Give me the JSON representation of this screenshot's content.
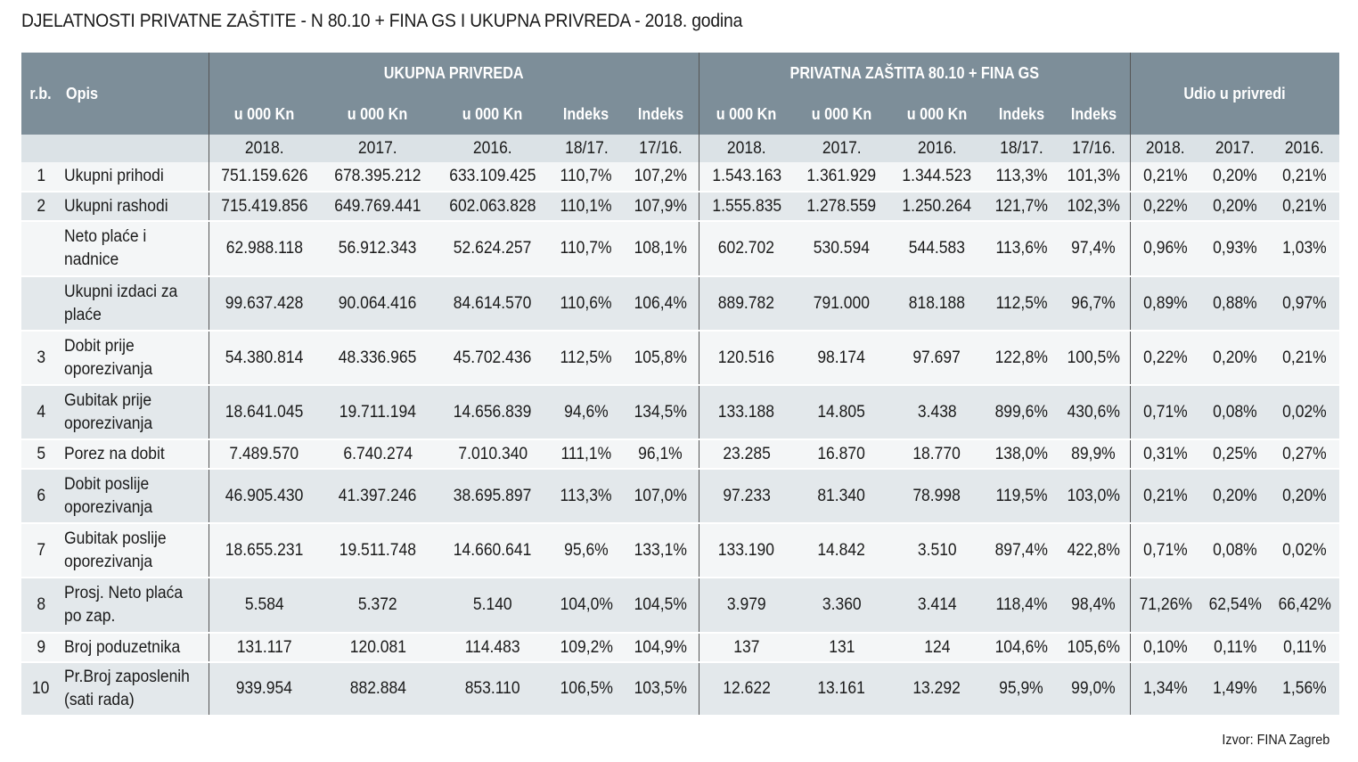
{
  "title": "DJELATNOSTI PRIVATNE ZAŠTITE - N 80.10 + FINA GS I UKUPNA PRIVREDA - 2018. godina",
  "source": "Izvor: FINA Zagreb",
  "header": {
    "rb": "r.b.",
    "opis": "Opis",
    "group1": "UKUPNA PRIVREDA",
    "group2": "PRIVATNA ZAŠTITA 80.10 + FINA GS",
    "group3": "Udio u privredi",
    "sub": [
      "u 000 Kn",
      "u 000 Kn",
      "u 000 Kn",
      "Indeks",
      "Indeks",
      "u 000 Kn",
      "u 000 Kn",
      "u 000 Kn",
      "Indeks",
      "Indeks"
    ],
    "years": [
      "2018.",
      "2017.",
      "2016.",
      "18/17.",
      "17/16.",
      "2018.",
      "2017.",
      "2016.",
      "18/17.",
      "17/16.",
      "2018.",
      "2017.",
      "2016."
    ]
  },
  "rows": [
    {
      "rb": "1",
      "opis": "Ukupni prihodi",
      "v": [
        "751.159.626",
        "678.395.212",
        "633.109.425",
        "110,7%",
        "107,2%",
        "1.543.163",
        "1.361.929",
        "1.344.523",
        "113,3%",
        "101,3%",
        "0,21%",
        "0,20%",
        "0,21%"
      ]
    },
    {
      "rb": "2",
      "opis": "Ukupni rashodi",
      "v": [
        "715.419.856",
        "649.769.441",
        "602.063.828",
        "110,1%",
        "107,9%",
        "1.555.835",
        "1.278.559",
        "1.250.264",
        "121,7%",
        "102,3%",
        "0,22%",
        "0,20%",
        "0,21%"
      ]
    },
    {
      "rb": "",
      "opis": "Neto plaće i nadnice",
      "v": [
        "62.988.118",
        "56.912.343",
        "52.624.257",
        "110,7%",
        "108,1%",
        "602.702",
        "530.594",
        "544.583",
        "113,6%",
        "97,4%",
        "0,96%",
        "0,93%",
        "1,03%"
      ]
    },
    {
      "rb": "",
      "opis": "Ukupni izdaci za plaće",
      "v": [
        "99.637.428",
        "90.064.416",
        "84.614.570",
        "110,6%",
        "106,4%",
        "889.782",
        "791.000",
        "818.188",
        "112,5%",
        "96,7%",
        "0,89%",
        "0,88%",
        "0,97%"
      ]
    },
    {
      "rb": "3",
      "opis": "Dobit prije oporezivanja",
      "v": [
        "54.380.814",
        "48.336.965",
        "45.702.436",
        "112,5%",
        "105,8%",
        "120.516",
        "98.174",
        "97.697",
        "122,8%",
        "100,5%",
        "0,22%",
        "0,20%",
        "0,21%"
      ]
    },
    {
      "rb": "4",
      "opis": "Gubitak prije oporezivanja",
      "v": [
        "18.641.045",
        "19.711.194",
        "14.656.839",
        "94,6%",
        "134,5%",
        "133.188",
        "14.805",
        "3.438",
        "899,6%",
        "430,6%",
        "0,71%",
        "0,08%",
        "0,02%"
      ]
    },
    {
      "rb": "5",
      "opis": "Porez na dobit",
      "v": [
        "7.489.570",
        "6.740.274",
        "7.010.340",
        "111,1%",
        "96,1%",
        "23.285",
        "16.870",
        "18.770",
        "138,0%",
        "89,9%",
        "0,31%",
        "0,25%",
        "0,27%"
      ]
    },
    {
      "rb": "6",
      "opis": "Dobit poslije oporezivanja",
      "v": [
        "46.905.430",
        "41.397.246",
        "38.695.897",
        "113,3%",
        "107,0%",
        "97.233",
        "81.340",
        "78.998",
        "119,5%",
        "103,0%",
        "0,21%",
        "0,20%",
        "0,20%"
      ]
    },
    {
      "rb": "7",
      "opis": "Gubitak poslije oporezivanja",
      "v": [
        "18.655.231",
        "19.511.748",
        "14.660.641",
        "95,6%",
        "133,1%",
        "133.190",
        "14.842",
        "3.510",
        "897,4%",
        "422,8%",
        "0,71%",
        "0,08%",
        "0,02%"
      ]
    },
    {
      "rb": "8",
      "opis": "Prosj. Neto plaća po zap.",
      "v": [
        "5.584",
        "5.372",
        "5.140",
        "104,0%",
        "104,5%",
        "3.979",
        "3.360",
        "3.414",
        "118,4%",
        "98,4%",
        "71,26%",
        "62,54%",
        "66,42%"
      ]
    },
    {
      "rb": "9",
      "opis": "Broj poduzetnika",
      "v": [
        "131.117",
        "120.081",
        "114.483",
        "109,2%",
        "104,9%",
        "137",
        "131",
        "124",
        "104,6%",
        "105,6%",
        "0,10%",
        "0,11%",
        "0,11%"
      ]
    },
    {
      "rb": "10",
      "opis": "Pr.Broj zaposlenih (sati rada)",
      "v": [
        "939.954",
        "882.884",
        "853.110",
        "106,5%",
        "103,5%",
        "12.622",
        "13.161",
        "13.292",
        "95,9%",
        "99,0%",
        "1,34%",
        "1,49%",
        "1,56%"
      ]
    }
  ]
}
